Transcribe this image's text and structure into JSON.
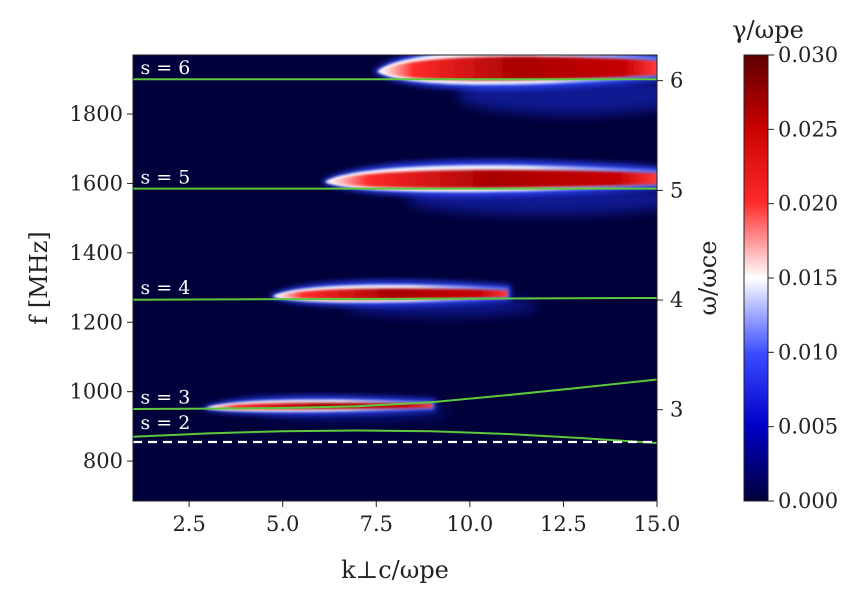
{
  "chart_data": {
    "type": "heatmap",
    "title": "",
    "xlabel": "k⊥c/ωpe",
    "ylabel": "f [MHz]",
    "y2label": "ω/ωce",
    "colorbar_label": "γ/ωpe",
    "xlim": [
      1.0,
      15.0
    ],
    "ylim": [
      685,
      1970
    ],
    "x_ticks": [
      2.5,
      5.0,
      7.5,
      10.0,
      12.5,
      15.0
    ],
    "x_tick_labels": [
      "2.5",
      "5.0",
      "7.5",
      "10.0",
      "12.5",
      "15.0"
    ],
    "y_ticks": [
      800,
      1000,
      1200,
      1400,
      1600,
      1800
    ],
    "y_tick_labels": [
      "800",
      "1000",
      "1200",
      "1400",
      "1600",
      "1800"
    ],
    "y2_ticks": [
      3,
      4,
      5,
      6
    ],
    "y2_tick_labels": [
      "3",
      "4",
      "5",
      "6"
    ],
    "f_ce_mhz": 316,
    "colorbar": {
      "min": 0.0,
      "max": 0.03,
      "ticks": [
        0.0,
        0.005,
        0.01,
        0.015,
        0.02,
        0.025,
        0.03
      ],
      "tick_labels": [
        "0.000",
        "0.005",
        "0.010",
        "0.015",
        "0.020",
        "0.025",
        "0.030"
      ],
      "colormap": "seismic",
      "colors": [
        "#00003a",
        "#0000c8",
        "#3a4bff",
        "#ffffff",
        "#ff2a2a",
        "#c80000",
        "#5e0000"
      ]
    },
    "background_color": "#00003a",
    "resonance_line_color": "#5ec93c",
    "cutoff_line_color": "#ffffff",
    "resonance_lines": [
      {
        "name": "s = 2",
        "x": [
          1.0,
          3.0,
          5.0,
          7.0,
          9.0,
          11.0,
          13.0,
          15.0
        ],
        "f": [
          870,
          880,
          886,
          888,
          886,
          878,
          866,
          852
        ]
      },
      {
        "name": "s = 3",
        "x": [
          1.0,
          3.0,
          5.0,
          7.0,
          9.0,
          11.0,
          13.0,
          15.0
        ],
        "f": [
          950,
          951,
          953,
          958,
          970,
          990,
          1012,
          1035
        ]
      },
      {
        "name": "s = 4",
        "x": [
          1.0,
          15.0
        ],
        "f": [
          1265,
          1270
        ]
      },
      {
        "name": "s = 5",
        "x": [
          1.0,
          15.0
        ],
        "f": [
          1585,
          1585
        ]
      },
      {
        "name": "s = 6",
        "x": [
          1.0,
          15.0
        ],
        "f": [
          1900,
          1900
        ]
      }
    ],
    "cutoff_line": {
      "name": "cutoff",
      "style": "dashed",
      "x": [
        1.0,
        15.0
      ],
      "f": [
        855,
        855
      ]
    },
    "line_labels": [
      {
        "text": "s = 6",
        "x": 1.2,
        "f": 1915
      },
      {
        "text": "s = 5",
        "x": 1.2,
        "f": 1600
      },
      {
        "text": "s = 4",
        "x": 1.2,
        "f": 1281
      },
      {
        "text": "s = 3",
        "x": 1.2,
        "f": 966
      },
      {
        "text": "s = 2",
        "x": 1.2,
        "f": 893
      }
    ],
    "growth_regions": [
      {
        "band": "s = 3",
        "x_start": 3.0,
        "x_peak": 5.0,
        "x_end": 9.0,
        "f_center": 958,
        "f_halfwidth": 14,
        "gamma_peak": 0.03
      },
      {
        "band": "s = 4",
        "x_start": 4.8,
        "x_peak": 7.5,
        "x_end": 11.0,
        "f_center": 1280,
        "f_halfwidth": 24,
        "gamma_peak": 0.03
      },
      {
        "band": "s = 5",
        "x_start": 6.2,
        "x_peak": 9.0,
        "x_end": 15.0,
        "f_center": 1610,
        "f_halfwidth": 40,
        "gamma_peak": 0.03
      },
      {
        "band": "s = 6",
        "x_start": 7.6,
        "x_peak": 10.5,
        "x_end": 15.0,
        "f_center": 1928,
        "f_halfwidth": 52,
        "gamma_peak": 0.03
      }
    ]
  }
}
